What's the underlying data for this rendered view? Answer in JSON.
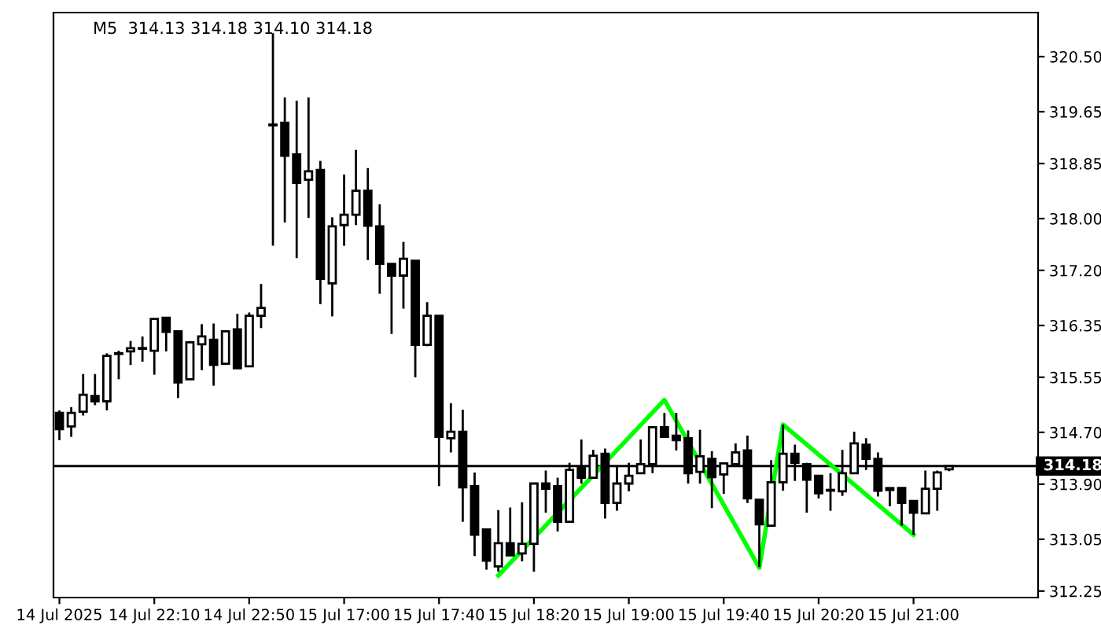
{
  "chart_data": {
    "type": "candlestick",
    "title": "M5  314.13 314.18 314.10 314.18",
    "categories": [
      "14 Jul 2025",
      null,
      null,
      null,
      null,
      null,
      null,
      null,
      "14 Jul 22:10",
      null,
      null,
      null,
      null,
      null,
      null,
      null,
      "14 Jul 22:50",
      null,
      null,
      null,
      null,
      null,
      null,
      null,
      "15 Jul 17:00",
      null,
      null,
      null,
      null,
      null,
      null,
      null,
      "15 Jul 17:40",
      null,
      null,
      null,
      null,
      null,
      null,
      null,
      "15 Jul 18:20",
      null,
      null,
      null,
      null,
      null,
      null,
      null,
      "15 Jul 19:00",
      null,
      null,
      null,
      null,
      null,
      null,
      null,
      "15 Jul 19:40",
      null,
      null,
      null,
      null,
      null,
      null,
      null,
      "15 Jul 20:20",
      null,
      null,
      null,
      null,
      null,
      null,
      null,
      "15 Jul 21:00",
      null,
      null,
      null,
      null,
      null,
      null,
      null,
      null,
      null,
      null
    ],
    "ohlc": [
      [
        315.0,
        315.04,
        314.58,
        314.75
      ],
      [
        314.79,
        315.09,
        314.63,
        315.0
      ],
      [
        315.02,
        315.6,
        314.96,
        315.28
      ],
      [
        315.26,
        315.6,
        315.12,
        315.18
      ],
      [
        315.18,
        315.92,
        315.04,
        315.88
      ],
      [
        315.91,
        315.96,
        315.52,
        315.92
      ],
      [
        315.95,
        316.11,
        315.74,
        316.0
      ],
      [
        315.99,
        316.18,
        315.79,
        315.99
      ],
      [
        315.96,
        316.45,
        315.59,
        316.45
      ],
      [
        316.47,
        316.47,
        315.95,
        316.25
      ],
      [
        316.26,
        316.26,
        315.23,
        315.47
      ],
      [
        315.52,
        316.11,
        315.52,
        316.09
      ],
      [
        316.06,
        316.37,
        315.66,
        316.18
      ],
      [
        316.13,
        316.38,
        315.42,
        315.74
      ],
      [
        315.76,
        316.26,
        315.74,
        316.26
      ],
      [
        316.29,
        316.53,
        315.69,
        315.69
      ],
      [
        315.72,
        316.55,
        315.72,
        316.5
      ],
      [
        316.5,
        316.99,
        316.31,
        316.62
      ],
      [
        319.44,
        320.86,
        317.58,
        319.44
      ],
      [
        319.48,
        319.87,
        317.94,
        318.97
      ],
      [
        318.99,
        319.82,
        317.39,
        318.55
      ],
      [
        318.6,
        319.87,
        318.01,
        318.73
      ],
      [
        318.75,
        318.89,
        316.68,
        317.07
      ],
      [
        317.0,
        318.02,
        316.49,
        317.88
      ],
      [
        317.9,
        318.68,
        317.58,
        318.06
      ],
      [
        318.06,
        319.06,
        317.9,
        318.43
      ],
      [
        318.43,
        318.78,
        317.36,
        317.89
      ],
      [
        317.88,
        318.22,
        316.84,
        317.3
      ],
      [
        317.3,
        317.3,
        316.22,
        317.12
      ],
      [
        317.12,
        317.64,
        316.61,
        317.38
      ],
      [
        317.35,
        317.35,
        315.55,
        316.05
      ],
      [
        316.05,
        316.71,
        316.03,
        316.5
      ],
      [
        316.5,
        316.5,
        313.87,
        314.63
      ],
      [
        314.61,
        315.15,
        314.39,
        314.71
      ],
      [
        314.71,
        315.05,
        313.32,
        313.85
      ],
      [
        313.87,
        314.08,
        312.79,
        313.12
      ],
      [
        313.2,
        313.2,
        312.58,
        312.72
      ],
      [
        312.63,
        313.5,
        312.55,
        312.99
      ],
      [
        312.99,
        313.54,
        312.8,
        312.8
      ],
      [
        312.83,
        313.62,
        312.71,
        312.98
      ],
      [
        312.98,
        313.92,
        312.55,
        313.91
      ],
      [
        313.91,
        314.11,
        313.46,
        313.83
      ],
      [
        313.87,
        314.0,
        313.17,
        313.32
      ],
      [
        313.32,
        314.23,
        313.32,
        314.12
      ],
      [
        314.17,
        314.59,
        313.91,
        314.0
      ],
      [
        314.0,
        314.43,
        314.0,
        314.34
      ],
      [
        314.37,
        314.45,
        313.37,
        313.61
      ],
      [
        313.61,
        314.17,
        313.49,
        313.91
      ],
      [
        313.91,
        314.23,
        313.79,
        314.03
      ],
      [
        314.07,
        314.59,
        314.07,
        314.21
      ],
      [
        314.21,
        314.79,
        314.07,
        314.78
      ],
      [
        314.78,
        315.0,
        314.63,
        314.63
      ],
      [
        314.65,
        315.0,
        314.42,
        314.58
      ],
      [
        314.61,
        314.73,
        313.91,
        314.07
      ],
      [
        314.09,
        314.74,
        313.91,
        314.33
      ],
      [
        314.29,
        314.41,
        313.53,
        314.01
      ],
      [
        314.05,
        314.22,
        313.75,
        314.22
      ],
      [
        314.21,
        314.53,
        314.21,
        314.39
      ],
      [
        314.42,
        314.65,
        313.61,
        313.68
      ],
      [
        313.66,
        313.66,
        312.62,
        313.28
      ],
      [
        313.26,
        314.27,
        313.26,
        313.93
      ],
      [
        313.93,
        314.82,
        313.8,
        314.37
      ],
      [
        314.37,
        314.51,
        313.95,
        314.23
      ],
      [
        314.21,
        314.23,
        313.46,
        313.97
      ],
      [
        314.03,
        314.03,
        313.68,
        313.76
      ],
      [
        313.8,
        314.07,
        313.49,
        313.8
      ],
      [
        313.79,
        314.43,
        313.72,
        314.07
      ],
      [
        314.07,
        314.71,
        314.07,
        314.53
      ],
      [
        314.51,
        314.61,
        314.12,
        314.29
      ],
      [
        314.29,
        314.39,
        313.71,
        313.8
      ],
      [
        313.84,
        313.84,
        313.56,
        313.81
      ],
      [
        313.84,
        313.84,
        313.26,
        313.61
      ],
      [
        313.64,
        313.64,
        313.12,
        313.46
      ],
      [
        313.45,
        314.11,
        313.45,
        313.83
      ],
      [
        313.83,
        314.11,
        313.49,
        314.08
      ],
      [
        314.13,
        314.18,
        314.1,
        314.18
      ],
      null,
      null,
      null,
      null,
      null,
      null,
      null
    ],
    "series": [
      {
        "type": "line",
        "color": "#00ff00",
        "values": [
          null,
          null,
          null,
          null,
          null,
          null,
          null,
          null,
          null,
          null,
          null,
          null,
          null,
          null,
          null,
          null,
          null,
          null,
          null,
          null,
          null,
          null,
          null,
          null,
          null,
          null,
          null,
          null,
          null,
          null,
          null,
          null,
          null,
          null,
          null,
          null,
          null,
          312.49,
          null,
          null,
          null,
          null,
          null,
          null,
          null,
          null,
          null,
          null,
          null,
          null,
          null,
          315.2,
          null,
          null,
          null,
          null,
          null,
          null,
          null,
          312.61,
          null,
          314.82,
          null,
          null,
          null,
          null,
          null,
          null,
          null,
          null,
          null,
          null,
          313.12,
          null,
          null,
          null,
          null,
          null,
          null,
          null,
          null,
          null,
          null
        ]
      }
    ],
    "ylim": [
      312.15,
      321.18
    ],
    "yticks": [
      {
        "value": 312.25,
        "label": "312.25"
      },
      {
        "value": 313.05,
        "label": "313.05"
      },
      {
        "value": 313.9,
        "label": "313.90"
      },
      {
        "value": 314.7,
        "label": "314.70"
      },
      {
        "value": 315.55,
        "label": "315.55"
      },
      {
        "value": 316.35,
        "label": "316.35"
      },
      {
        "value": 317.2,
        "label": "317.20"
      },
      {
        "value": 318.0,
        "label": "318.00"
      },
      {
        "value": 318.85,
        "label": "318.85"
      },
      {
        "value": 319.65,
        "label": "319.65"
      },
      {
        "value": 320.5,
        "label": "320.50"
      }
    ],
    "ref_lines": [
      {
        "axis": "y",
        "value": 314.18,
        "label": "314.18",
        "color": "#000000"
      }
    ],
    "grid": false,
    "legend": false
  }
}
